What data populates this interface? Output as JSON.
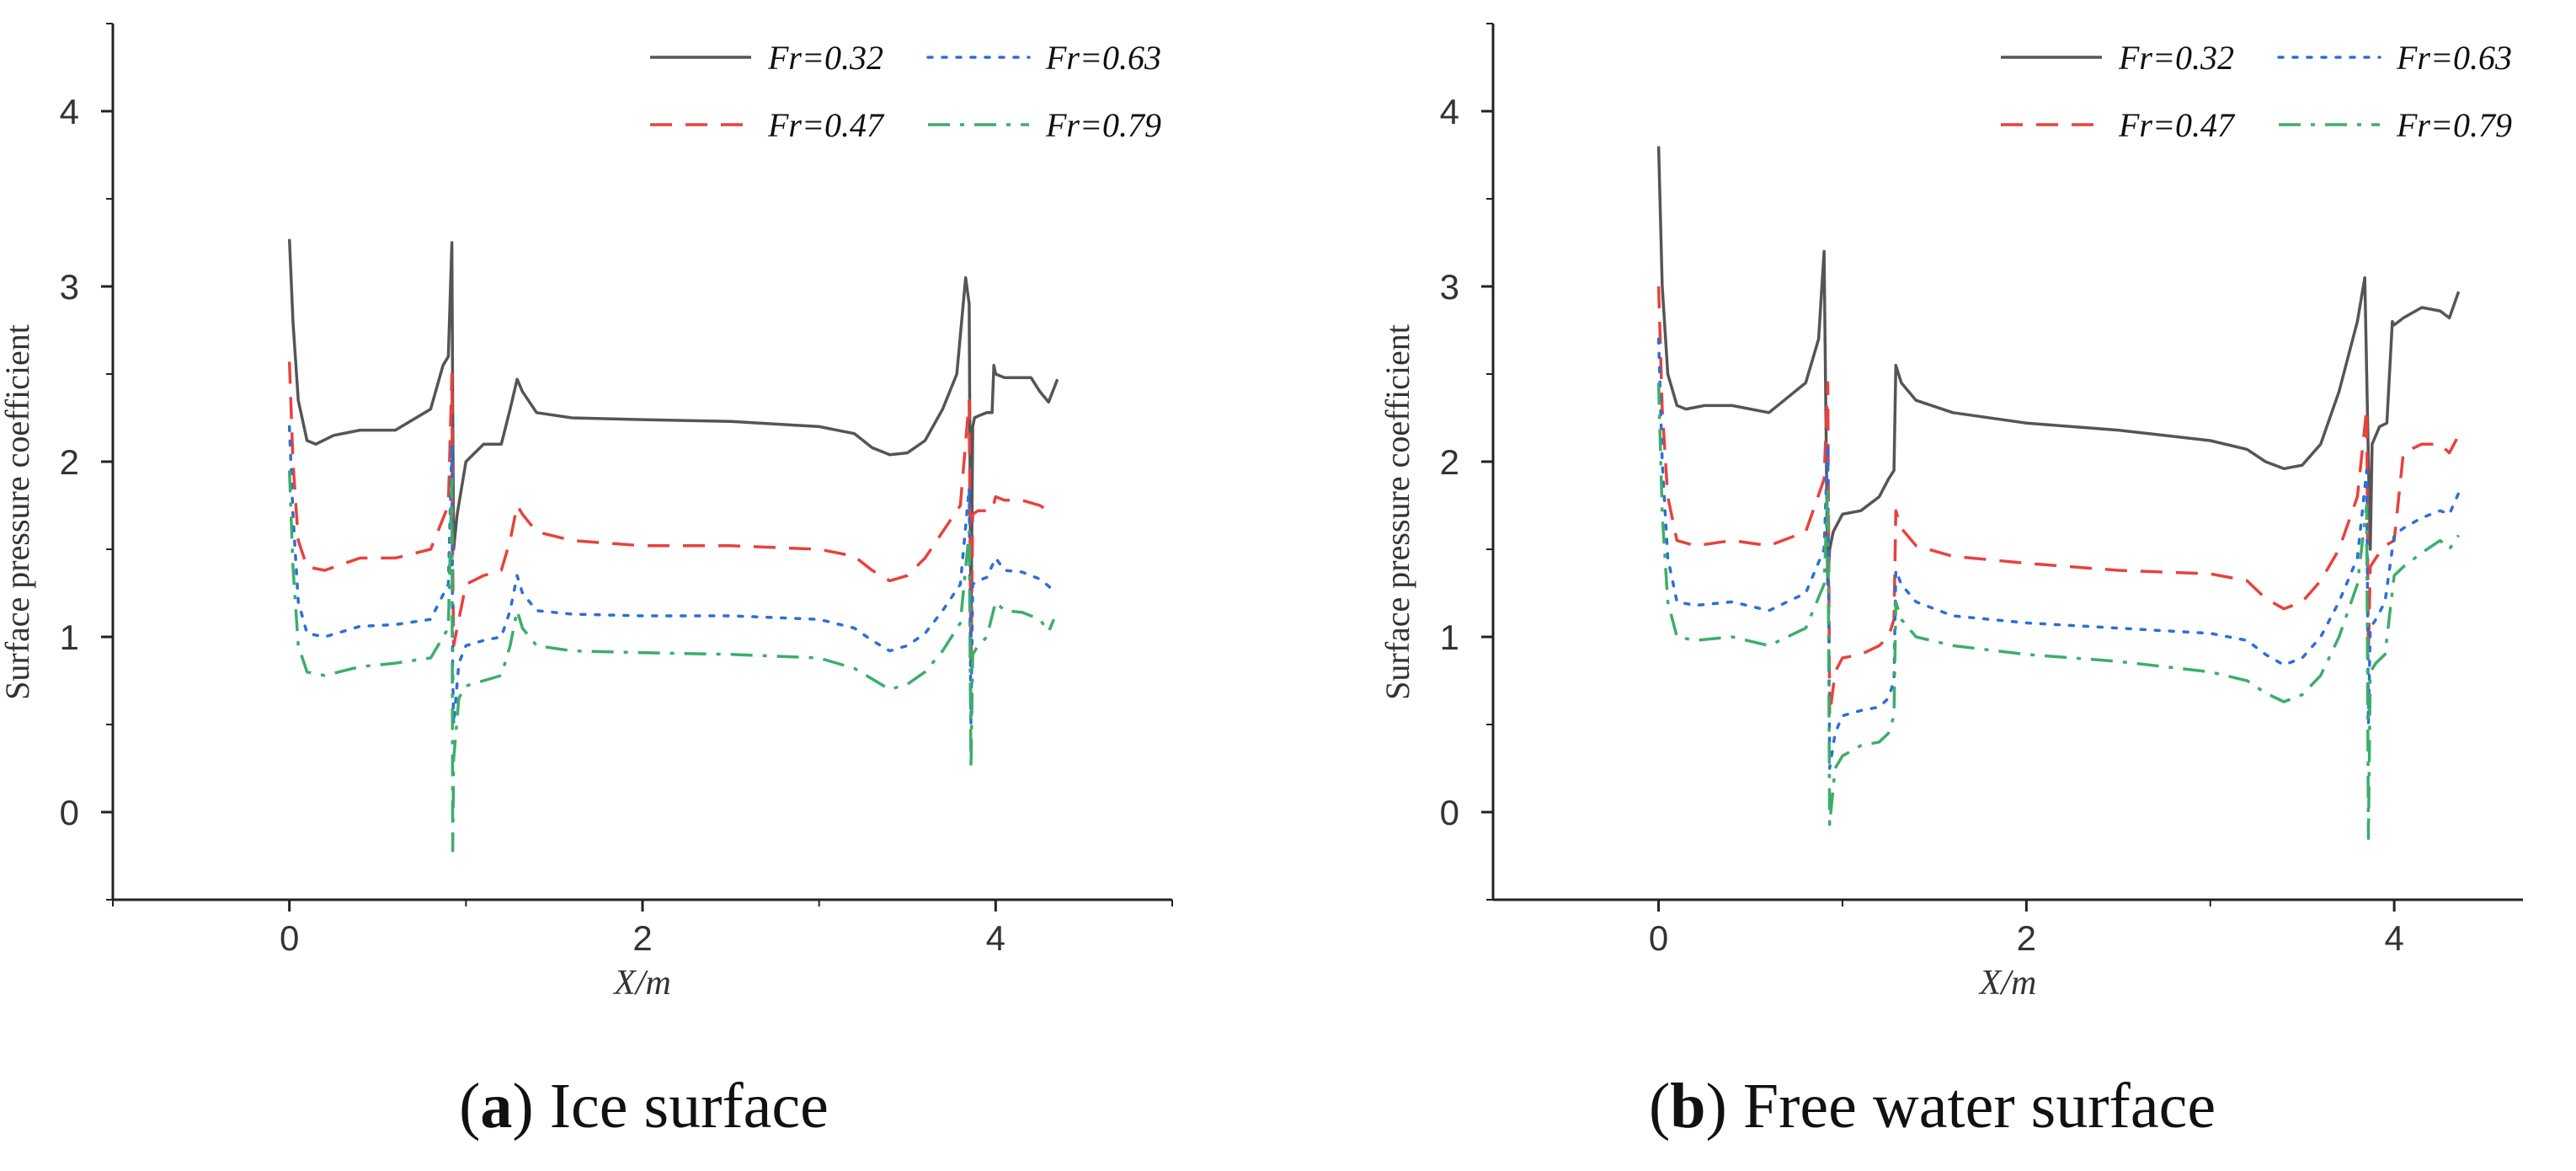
{
  "chart_data": [
    {
      "type": "line",
      "panel": "a",
      "caption_letter": "a",
      "caption_text": "Ice surface",
      "xlabel": "X/m",
      "ylabel": "Surface pressure coefficient",
      "xlim": [
        -1,
        5
      ],
      "ylim": [
        -0.5,
        4.5
      ],
      "xticks": [
        0,
        2,
        4
      ],
      "yticks": [
        0,
        1,
        2,
        3,
        4
      ],
      "legend_position": "top-right",
      "series": [
        {
          "name": "Fr=0.32",
          "color": "#555555",
          "dash": "solid",
          "x": [
            0.0,
            0.02,
            0.05,
            0.1,
            0.15,
            0.25,
            0.4,
            0.6,
            0.8,
            0.87,
            0.9,
            0.92,
            0.925,
            0.93,
            0.95,
            1.0,
            1.1,
            1.2,
            1.25,
            1.29,
            1.32,
            1.4,
            1.6,
            2.0,
            2.5,
            3.0,
            3.2,
            3.3,
            3.4,
            3.5,
            3.6,
            3.7,
            3.78,
            3.83,
            3.85,
            3.86,
            3.87,
            3.88,
            3.9,
            3.95,
            3.98,
            3.99,
            4.0,
            4.05,
            4.1,
            4.2,
            4.25,
            4.3,
            4.35
          ],
          "y": [
            3.27,
            2.8,
            2.35,
            2.12,
            2.1,
            2.15,
            2.18,
            2.18,
            2.3,
            2.55,
            2.6,
            3.25,
            2.3,
            1.5,
            1.7,
            2.0,
            2.1,
            2.1,
            2.3,
            2.47,
            2.4,
            2.28,
            2.25,
            2.24,
            2.23,
            2.2,
            2.16,
            2.08,
            2.04,
            2.05,
            2.12,
            2.3,
            2.5,
            3.05,
            2.9,
            1.0,
            2.2,
            2.25,
            2.26,
            2.28,
            2.28,
            2.55,
            2.5,
            2.48,
            2.48,
            2.48,
            2.4,
            2.34,
            2.47
          ]
        },
        {
          "name": "Fr=0.47",
          "color": "#e8423c",
          "dash": "dashed",
          "x": [
            0.0,
            0.02,
            0.05,
            0.1,
            0.2,
            0.4,
            0.6,
            0.8,
            0.9,
            0.92,
            0.925,
            0.93,
            0.96,
            1.0,
            1.1,
            1.2,
            1.25,
            1.29,
            1.32,
            1.4,
            1.6,
            2.0,
            2.5,
            3.0,
            3.2,
            3.3,
            3.4,
            3.5,
            3.6,
            3.7,
            3.8,
            3.85,
            3.86,
            3.87,
            3.9,
            3.95,
            3.98,
            4.0,
            4.05,
            4.15,
            4.25,
            4.3,
            4.33
          ],
          "y": [
            2.57,
            2.0,
            1.55,
            1.4,
            1.38,
            1.45,
            1.45,
            1.5,
            1.75,
            2.5,
            1.4,
            0.95,
            1.1,
            1.3,
            1.35,
            1.38,
            1.55,
            1.75,
            1.7,
            1.6,
            1.55,
            1.52,
            1.52,
            1.5,
            1.46,
            1.38,
            1.32,
            1.35,
            1.45,
            1.6,
            1.75,
            2.35,
            0.8,
            1.7,
            1.72,
            1.72,
            1.72,
            1.8,
            1.78,
            1.78,
            1.75,
            1.72,
            1.7
          ]
        },
        {
          "name": "Fr=0.63",
          "color": "#2c6fd8",
          "dash": "dotted",
          "x": [
            0.0,
            0.02,
            0.05,
            0.1,
            0.2,
            0.4,
            0.6,
            0.8,
            0.9,
            0.92,
            0.925,
            0.93,
            0.96,
            1.0,
            1.1,
            1.2,
            1.25,
            1.29,
            1.32,
            1.4,
            1.6,
            2.0,
            2.5,
            3.0,
            3.2,
            3.3,
            3.4,
            3.5,
            3.6,
            3.7,
            3.8,
            3.85,
            3.86,
            3.87,
            3.9,
            3.95,
            4.0,
            4.05,
            4.15,
            4.25,
            4.3,
            4.33
          ],
          "y": [
            2.2,
            1.7,
            1.2,
            1.02,
            1.0,
            1.06,
            1.07,
            1.1,
            1.3,
            2.1,
            0.8,
            0.5,
            0.85,
            0.95,
            0.98,
            1.0,
            1.15,
            1.35,
            1.25,
            1.15,
            1.13,
            1.12,
            1.12,
            1.1,
            1.05,
            0.98,
            0.92,
            0.95,
            1.02,
            1.15,
            1.3,
            1.85,
            0.5,
            1.3,
            1.32,
            1.34,
            1.45,
            1.38,
            1.37,
            1.33,
            1.29,
            1.26
          ]
        },
        {
          "name": "Fr=0.79",
          "color": "#3cae6a",
          "dash": "dashdot",
          "x": [
            0.0,
            0.02,
            0.05,
            0.1,
            0.2,
            0.4,
            0.6,
            0.8,
            0.9,
            0.92,
            0.925,
            0.93,
            0.96,
            1.0,
            1.1,
            1.2,
            1.25,
            1.29,
            1.32,
            1.4,
            1.6,
            2.0,
            2.5,
            3.0,
            3.2,
            3.3,
            3.4,
            3.5,
            3.6,
            3.7,
            3.8,
            3.85,
            3.86,
            3.87,
            3.9,
            3.95,
            4.0,
            4.05,
            4.15,
            4.25,
            4.3,
            4.33
          ],
          "y": [
            1.95,
            1.4,
            0.95,
            0.8,
            0.78,
            0.83,
            0.85,
            0.88,
            1.05,
            1.9,
            -0.22,
            0.3,
            0.65,
            0.72,
            0.75,
            0.78,
            0.95,
            1.15,
            1.05,
            0.95,
            0.92,
            0.91,
            0.9,
            0.88,
            0.82,
            0.76,
            0.7,
            0.73,
            0.8,
            0.92,
            1.08,
            1.6,
            0.25,
            0.9,
            0.95,
            1.0,
            1.2,
            1.15,
            1.14,
            1.1,
            1.03,
            1.1
          ]
        }
      ]
    },
    {
      "type": "line",
      "panel": "b",
      "caption_letter": "b",
      "caption_text": "Free water surface",
      "xlabel": "X/m",
      "ylabel": "Surface pressure coefficient",
      "xlim": [
        -0.9,
        4.7
      ],
      "ylim": [
        -0.5,
        4.5
      ],
      "xticks": [
        0,
        2,
        4
      ],
      "yticks": [
        0,
        1,
        2,
        3,
        4
      ],
      "legend_position": "top-right",
      "series": [
        {
          "name": "Fr=0.32",
          "color": "#555555",
          "dash": "solid",
          "x": [
            0.0,
            0.02,
            0.05,
            0.1,
            0.15,
            0.25,
            0.4,
            0.6,
            0.8,
            0.87,
            0.9,
            0.92,
            0.93,
            0.95,
            1.0,
            1.1,
            1.2,
            1.25,
            1.28,
            1.29,
            1.32,
            1.4,
            1.6,
            2.0,
            2.5,
            3.0,
            3.2,
            3.3,
            3.4,
            3.5,
            3.6,
            3.7,
            3.8,
            3.84,
            3.86,
            3.87,
            3.88,
            3.92,
            3.96,
            3.99,
            4.0,
            4.05,
            4.15,
            4.25,
            4.3,
            4.35
          ],
          "y": [
            3.8,
            3.0,
            2.5,
            2.32,
            2.3,
            2.32,
            2.32,
            2.28,
            2.45,
            2.7,
            3.2,
            1.3,
            1.5,
            1.6,
            1.7,
            1.72,
            1.8,
            1.9,
            1.95,
            2.55,
            2.45,
            2.35,
            2.28,
            2.22,
            2.18,
            2.12,
            2.07,
            2.0,
            1.96,
            1.98,
            2.1,
            2.4,
            2.8,
            3.05,
            2.0,
            1.5,
            2.1,
            2.2,
            2.22,
            2.8,
            2.78,
            2.82,
            2.88,
            2.86,
            2.82,
            2.97
          ]
        },
        {
          "name": "Fr=0.47",
          "color": "#e8423c",
          "dash": "dashed",
          "x": [
            0.0,
            0.02,
            0.05,
            0.1,
            0.2,
            0.4,
            0.6,
            0.8,
            0.9,
            0.92,
            0.93,
            0.96,
            1.0,
            1.1,
            1.2,
            1.25,
            1.28,
            1.29,
            1.32,
            1.4,
            1.6,
            2.0,
            2.5,
            3.0,
            3.2,
            3.3,
            3.4,
            3.5,
            3.6,
            3.7,
            3.8,
            3.85,
            3.86,
            3.87,
            3.9,
            3.95,
            4.0,
            4.05,
            4.15,
            4.25,
            4.3,
            4.35
          ],
          "y": [
            3.0,
            2.3,
            1.8,
            1.55,
            1.52,
            1.55,
            1.52,
            1.6,
            1.9,
            2.45,
            0.55,
            0.8,
            0.88,
            0.9,
            0.95,
            1.0,
            1.1,
            1.72,
            1.62,
            1.52,
            1.46,
            1.42,
            1.38,
            1.36,
            1.32,
            1.22,
            1.16,
            1.2,
            1.32,
            1.5,
            1.8,
            2.3,
            0.9,
            1.4,
            1.45,
            1.52,
            1.55,
            2.05,
            2.1,
            2.1,
            2.05,
            2.15
          ]
        },
        {
          "name": "Fr=0.63",
          "color": "#2c6fd8",
          "dash": "dotted",
          "x": [
            0.0,
            0.02,
            0.05,
            0.1,
            0.2,
            0.4,
            0.6,
            0.8,
            0.9,
            0.92,
            0.93,
            0.96,
            1.0,
            1.1,
            1.2,
            1.25,
            1.28,
            1.29,
            1.32,
            1.4,
            1.6,
            2.0,
            2.5,
            3.0,
            3.2,
            3.3,
            3.4,
            3.5,
            3.6,
            3.7,
            3.8,
            3.85,
            3.86,
            3.87,
            3.9,
            3.95,
            4.0,
            4.05,
            4.15,
            4.25,
            4.3,
            4.35
          ],
          "y": [
            2.7,
            2.0,
            1.45,
            1.2,
            1.18,
            1.2,
            1.15,
            1.25,
            1.5,
            2.1,
            0.25,
            0.45,
            0.55,
            0.58,
            0.6,
            0.65,
            0.75,
            1.38,
            1.3,
            1.2,
            1.12,
            1.08,
            1.05,
            1.02,
            0.98,
            0.9,
            0.84,
            0.88,
            1.0,
            1.2,
            1.45,
            1.95,
            0.5,
            1.05,
            1.1,
            1.2,
            1.58,
            1.62,
            1.68,
            1.72,
            1.7,
            1.82
          ]
        },
        {
          "name": "Fr=0.79",
          "color": "#3cae6a",
          "dash": "dashdot",
          "x": [
            0.0,
            0.02,
            0.05,
            0.1,
            0.2,
            0.4,
            0.6,
            0.8,
            0.9,
            0.92,
            0.93,
            0.96,
            1.0,
            1.1,
            1.2,
            1.25,
            1.28,
            1.29,
            1.32,
            1.4,
            1.6,
            2.0,
            2.5,
            3.0,
            3.2,
            3.3,
            3.4,
            3.5,
            3.6,
            3.7,
            3.8,
            3.85,
            3.86,
            3.87,
            3.9,
            3.95,
            4.0,
            4.05,
            4.15,
            4.25,
            4.3,
            4.35
          ],
          "y": [
            2.45,
            1.7,
            1.2,
            1.0,
            0.98,
            1.0,
            0.95,
            1.05,
            1.3,
            1.85,
            -0.07,
            0.25,
            0.32,
            0.38,
            0.4,
            0.45,
            0.55,
            1.2,
            1.1,
            1.0,
            0.95,
            0.9,
            0.86,
            0.8,
            0.75,
            0.68,
            0.63,
            0.67,
            0.78,
            1.0,
            1.3,
            1.75,
            -0.15,
            0.8,
            0.85,
            0.9,
            1.35,
            1.4,
            1.48,
            1.55,
            1.5,
            1.58
          ]
        }
      ]
    }
  ]
}
